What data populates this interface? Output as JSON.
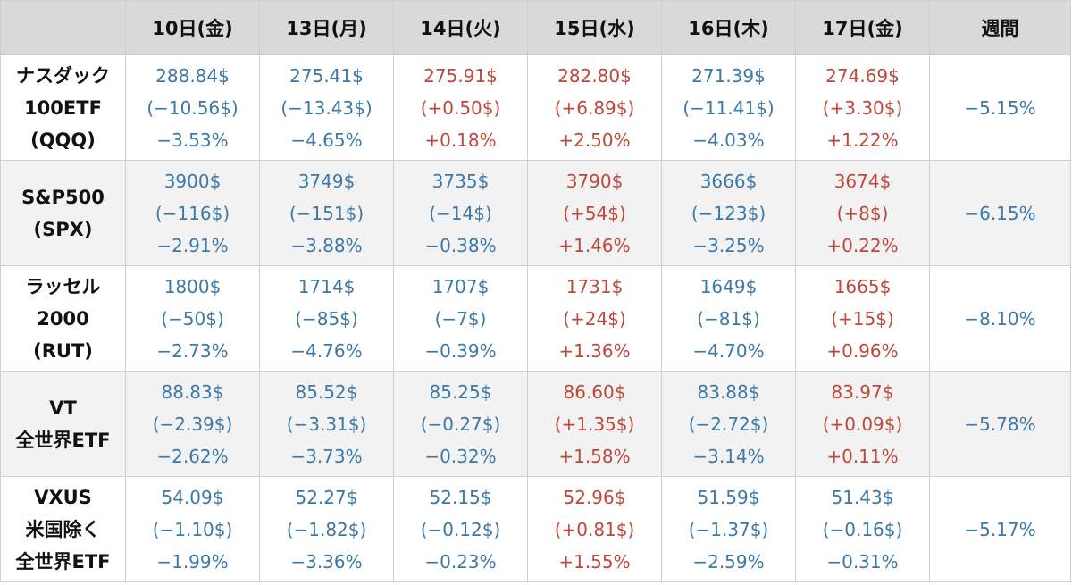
{
  "chart_data": {
    "type": "table",
    "columns": [
      "",
      "10日(金)",
      "13日(月)",
      "14日(火)",
      "15日(水)",
      "16日(木)",
      "17日(金)",
      "週間"
    ],
    "colors": {
      "negative": "#3c78a8",
      "positive": "#c0483b",
      "header_bg": "#d9d9d9",
      "alt_row_bg": "#f2f2f2"
    },
    "rows": [
      {
        "name": [
          "ナスダック",
          "100ETF",
          "(QQQ)"
        ],
        "days": [
          {
            "price": "288.84$",
            "change": "(−10.56$)",
            "pct": "−3.53%",
            "dir": "neg"
          },
          {
            "price": "275.41$",
            "change": "(−13.43$)",
            "pct": "−4.65%",
            "dir": "neg"
          },
          {
            "price": "275.91$",
            "change": "(+0.50$)",
            "pct": "+0.18%",
            "dir": "pos"
          },
          {
            "price": "282.80$",
            "change": "(+6.89$)",
            "pct": "+2.50%",
            "dir": "pos"
          },
          {
            "price": "271.39$",
            "change": "(−11.41$)",
            "pct": "−4.03%",
            "dir": "neg"
          },
          {
            "price": "274.69$",
            "change": "(+3.30$)",
            "pct": "+1.22%",
            "dir": "pos"
          }
        ],
        "weekly": "−5.15%"
      },
      {
        "name": [
          "S&P500",
          "(SPX)"
        ],
        "days": [
          {
            "price": "3900$",
            "change": "(−116$)",
            "pct": "−2.91%",
            "dir": "neg"
          },
          {
            "price": "3749$",
            "change": "(−151$)",
            "pct": "−3.88%",
            "dir": "neg"
          },
          {
            "price": "3735$",
            "change": "(−14$)",
            "pct": "−0.38%",
            "dir": "neg"
          },
          {
            "price": "3790$",
            "change": "(+54$)",
            "pct": "+1.46%",
            "dir": "pos"
          },
          {
            "price": "3666$",
            "change": "(−123$)",
            "pct": "−3.25%",
            "dir": "neg"
          },
          {
            "price": "3674$",
            "change": "(+8$)",
            "pct": "+0.22%",
            "dir": "pos"
          }
        ],
        "weekly": "−6.15%"
      },
      {
        "name": [
          "ラッセル",
          "2000",
          "(RUT)"
        ],
        "days": [
          {
            "price": "1800$",
            "change": "(−50$)",
            "pct": "−2.73%",
            "dir": "neg"
          },
          {
            "price": "1714$",
            "change": "(−85$)",
            "pct": "−4.76%",
            "dir": "neg"
          },
          {
            "price": "1707$",
            "change": "(−7$)",
            "pct": "−0.39%",
            "dir": "neg"
          },
          {
            "price": "1731$",
            "change": "(+24$)",
            "pct": "+1.36%",
            "dir": "pos"
          },
          {
            "price": "1649$",
            "change": "(−81$)",
            "pct": "−4.70%",
            "dir": "neg"
          },
          {
            "price": "1665$",
            "change": "(+15$)",
            "pct": "+0.96%",
            "dir": "pos"
          }
        ],
        "weekly": "−8.10%"
      },
      {
        "name": [
          "VT",
          "全世界ETF"
        ],
        "days": [
          {
            "price": "88.83$",
            "change": "(−2.39$)",
            "pct": "−2.62%",
            "dir": "neg"
          },
          {
            "price": "85.52$",
            "change": "(−3.31$)",
            "pct": "−3.73%",
            "dir": "neg"
          },
          {
            "price": "85.25$",
            "change": "(−0.27$)",
            "pct": "−0.32%",
            "dir": "neg"
          },
          {
            "price": "86.60$",
            "change": "(+1.35$)",
            "pct": "+1.58%",
            "dir": "pos"
          },
          {
            "price": "83.88$",
            "change": "(−2.72$)",
            "pct": "−3.14%",
            "dir": "neg"
          },
          {
            "price": "83.97$",
            "change": "(+0.09$)",
            "pct": "+0.11%",
            "dir": "pos"
          }
        ],
        "weekly": "−5.78%"
      },
      {
        "name": [
          "VXUS",
          "米国除く",
          "全世界ETF"
        ],
        "days": [
          {
            "price": "54.09$",
            "change": "(−1.10$)",
            "pct": "−1.99%",
            "dir": "neg"
          },
          {
            "price": "52.27$",
            "change": "(−1.82$)",
            "pct": "−3.36%",
            "dir": "neg"
          },
          {
            "price": "52.15$",
            "change": "(−0.12$)",
            "pct": "−0.23%",
            "dir": "neg"
          },
          {
            "price": "52.96$",
            "change": "(+0.81$)",
            "pct": "+1.55%",
            "dir": "pos"
          },
          {
            "price": "51.59$",
            "change": "(−1.37$)",
            "pct": "−2.59%",
            "dir": "neg"
          },
          {
            "price": "51.43$",
            "change": "(−0.16$)",
            "pct": "−0.31%",
            "dir": "neg"
          }
        ],
        "weekly": "−5.17%"
      }
    ]
  }
}
